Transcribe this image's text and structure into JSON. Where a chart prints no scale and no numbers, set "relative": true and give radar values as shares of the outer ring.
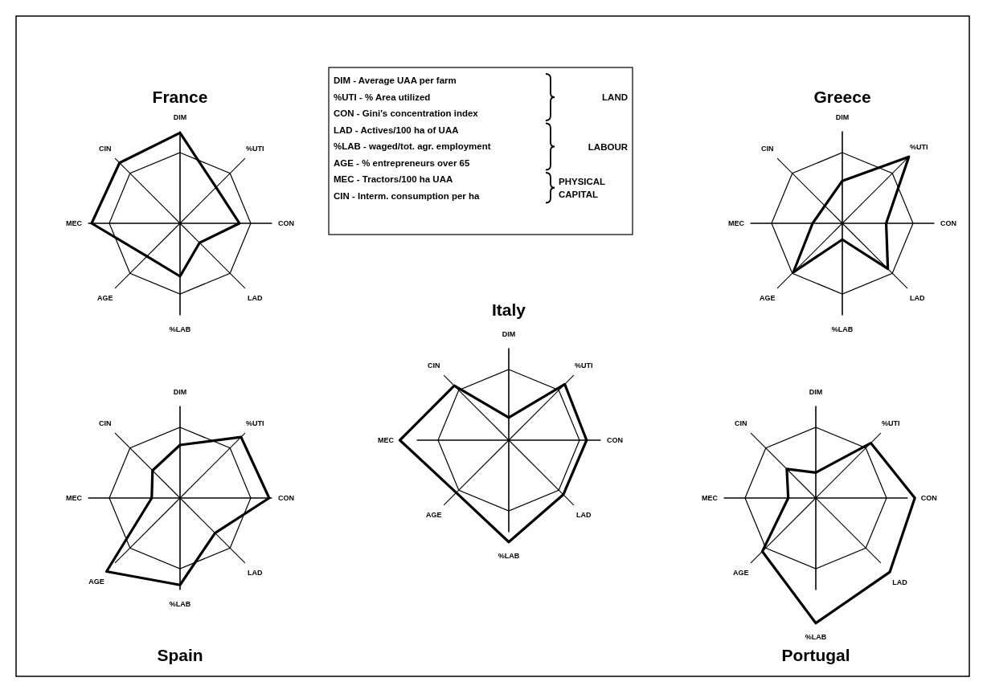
{
  "chart_data": [
    {
      "type": "radar",
      "title": "France",
      "relative": true,
      "grid": true,
      "categories": [
        "DIM",
        "%UTI",
        "CON",
        "LAD",
        "%LAB",
        "AGE",
        "MEC",
        "CIN"
      ],
      "series": [
        {
          "color": "#000000",
          "values": [
            1.28,
            0.72,
            0.84,
            0.39,
            0.75,
            0.66,
            1.25,
            1.21
          ]
        }
      ]
    },
    {
      "type": "radar",
      "title": "Greece",
      "relative": true,
      "grid": true,
      "categories": [
        "DIM",
        "%UTI",
        "CON",
        "LAD",
        "%LAB",
        "AGE",
        "MEC",
        "CIN"
      ],
      "series": [
        {
          "color": "#000000",
          "values": [
            0.6,
            1.33,
            0.62,
            0.91,
            0.23,
            0.98,
            0.42,
            0.35
          ]
        }
      ]
    },
    {
      "type": "radar",
      "title": "Italy",
      "relative": true,
      "grid": true,
      "categories": [
        "DIM",
        "%UTI",
        "CON",
        "LAD",
        "%LAB",
        "AGE",
        "MEC",
        "CIN"
      ],
      "series": [
        {
          "color": "#000000",
          "values": [
            0.32,
            1.12,
            1.1,
            1.09,
            1.44,
            1.05,
            1.54,
            1.09
          ]
        }
      ]
    },
    {
      "type": "radar",
      "title": "Spain",
      "relative": true,
      "grid": true,
      "categories": [
        "DIM",
        "%UTI",
        "CON",
        "LAD",
        "%LAB",
        "AGE",
        "MEC",
        "CIN"
      ],
      "series": [
        {
          "color": "#000000",
          "values": [
            0.75,
            1.22,
            1.26,
            0.7,
            1.23,
            1.47,
            0.4,
            0.55
          ]
        }
      ]
    },
    {
      "type": "radar",
      "title": "Portugal",
      "relative": true,
      "grid": true,
      "categories": [
        "DIM",
        "%UTI",
        "CON",
        "LAD",
        "%LAB",
        "AGE",
        "MEC",
        "CIN"
      ],
      "series": [
        {
          "color": "#000000",
          "values": [
            0.36,
            1.1,
            1.4,
            1.48,
            1.77,
            1.07,
            0.39,
            0.58
          ]
        }
      ]
    },
    {
      "type": "other",
      "annotations": [
        "DIM - Average UAA per farm",
        "%UTI - % Area utilized",
        "CON - Gini's concentration index",
        "LAD - Actives/100 ha of UAA",
        "%LAB - waged/tot. agr. employment",
        "AGE - % entrepreneurs over 65",
        "MEC - Tractors/100 ha UAA",
        "CIN - Interm. consumption per ha",
        "LAND",
        "LABOUR",
        "PHYSICAL CAPITAL"
      ]
    }
  ]
}
